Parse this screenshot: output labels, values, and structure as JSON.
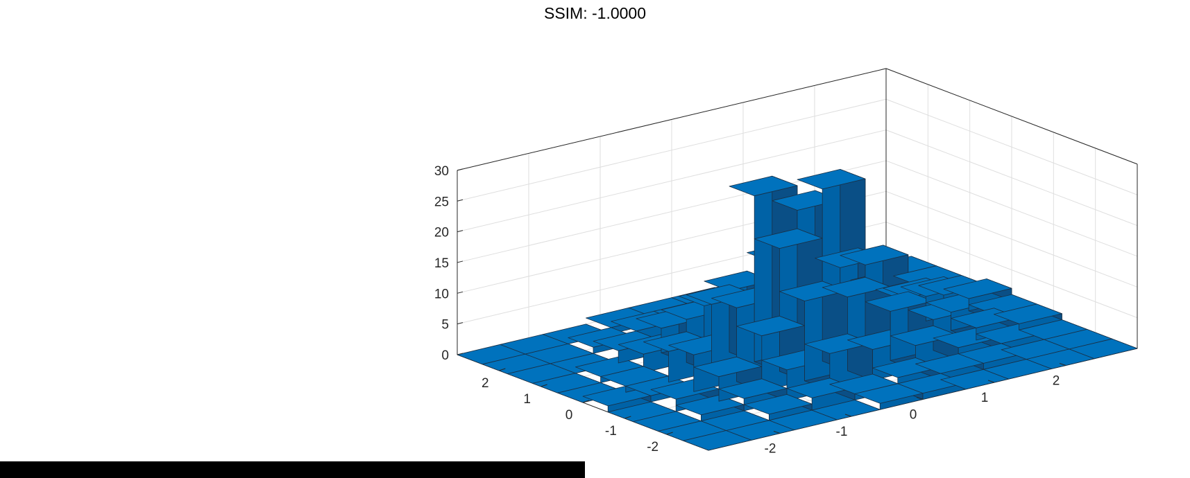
{
  "title": "SSIM: -1.0000",
  "chart_data": {
    "type": "bar3",
    "title": "SSIM: -1.0000",
    "bar_color": "#0072bd",
    "edge_color": "#1a2f44",
    "grid": true,
    "x_ticks": [
      -2,
      -1,
      0,
      1,
      2
    ],
    "y_ticks": [
      -2,
      -1,
      0,
      1,
      2
    ],
    "z_ticks": [
      0,
      5,
      10,
      15,
      20,
      25,
      30
    ],
    "xlim": [
      -3,
      3
    ],
    "ylim": [
      -3,
      3
    ],
    "zlim": [
      0,
      30
    ],
    "x_bins": [
      -2.7,
      -2.1,
      -1.5,
      -0.9,
      -0.3,
      0.3,
      0.9,
      1.5,
      2.1,
      2.7
    ],
    "y_bins": [
      -2.7,
      -2.1,
      -1.5,
      -0.9,
      -0.3,
      0.3,
      0.9,
      1.5,
      2.1,
      2.7
    ],
    "counts": [
      [
        0,
        0,
        0,
        0,
        1,
        0,
        0,
        0,
        0,
        0
      ],
      [
        0,
        0,
        1,
        2,
        1,
        1,
        1,
        0,
        0,
        0
      ],
      [
        0,
        1,
        2,
        4,
        6,
        5,
        3,
        2,
        1,
        0
      ],
      [
        0,
        2,
        5,
        9,
        12,
        11,
        7,
        4,
        2,
        1
      ],
      [
        1,
        1,
        6,
        13,
        20,
        27,
        10,
        6,
        2,
        1
      ],
      [
        1,
        2,
        5,
        12,
        28,
        23,
        13,
        6,
        3,
        1
      ],
      [
        0,
        1,
        4,
        8,
        14,
        12,
        10,
        5,
        2,
        0
      ],
      [
        0,
        1,
        2,
        5,
        7,
        6,
        5,
        3,
        1,
        0
      ],
      [
        0,
        0,
        1,
        2,
        3,
        4,
        2,
        2,
        1,
        1
      ],
      [
        0,
        0,
        0,
        1,
        1,
        2,
        1,
        1,
        1,
        0
      ]
    ]
  }
}
